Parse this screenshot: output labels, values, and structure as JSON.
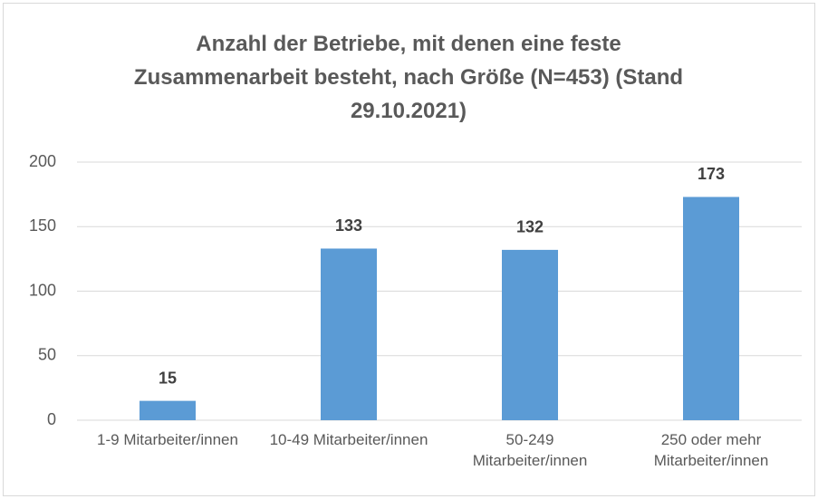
{
  "chart_data": {
    "type": "bar",
    "title": "Anzahl der Betriebe, mit denen eine feste Zusammenarbeit besteht, nach Größe (N=453) (Stand 29.10.2021)",
    "categories": [
      "1-9 Mitarbeiter/innen",
      "10-49 Mitarbeiter/innen",
      "50-249 Mitarbeiter/innen",
      "250 oder mehr Mitarbeiter/innen"
    ],
    "values": [
      15,
      133,
      132,
      173
    ],
    "color": "#5b9bd5",
    "ylim": [
      0,
      200
    ],
    "yticks": [
      0,
      50,
      100,
      150,
      200
    ],
    "grid": true
  }
}
